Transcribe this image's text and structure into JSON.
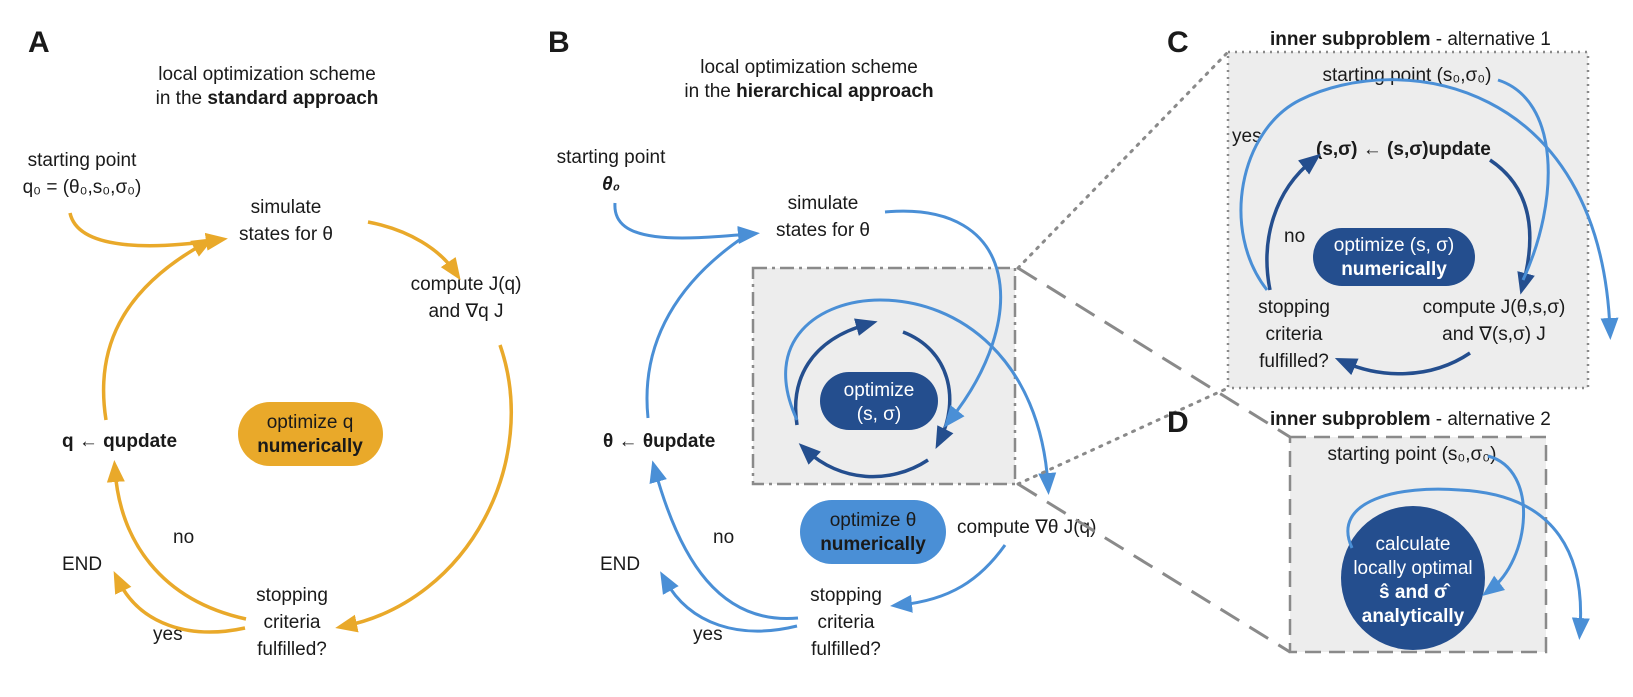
{
  "panels": {
    "A": {
      "letter": "A",
      "title_line1": "local optimization scheme",
      "title_line2_prefix": "in the ",
      "title_line2_bold": "standard approach",
      "start_line1": "starting point",
      "start_line2": "q₀ = (θ₀,s₀,σ₀)",
      "simulate_line1": "simulate",
      "simulate_line2": "states for θ",
      "compute_line1": "compute J(q)",
      "compute_line2": "and ∇q J",
      "pill_line1": "optimize q",
      "pill_line2": "numerically",
      "update": "q ← qupdate",
      "no": "no",
      "yes": "yes",
      "end": "END",
      "stop_line1": "stopping",
      "stop_line2": "criteria",
      "stop_line3": "fulfilled?"
    },
    "B": {
      "letter": "B",
      "title_line1": "local optimization scheme",
      "title_line2_prefix": "in the ",
      "title_line2_bold": "hierarchical approach",
      "start_line1": "starting point",
      "start_line2": "θ₀",
      "simulate_line1": "simulate",
      "simulate_line2": "states for θ",
      "inner_pill_line1": "optimize",
      "inner_pill_line2": "(s, σ)",
      "pill_line1": "optimize θ",
      "pill_line2": "numerically",
      "compute": "compute ∇θ J(q)",
      "update": "θ ← θupdate",
      "no": "no",
      "yes": "yes",
      "end": "END",
      "stop_line1": "stopping",
      "stop_line2": "criteria",
      "stop_line3": "fulfilled?"
    },
    "C": {
      "letter": "C",
      "heading_bold": "inner subproblem",
      "heading_rest": " - alternative 1",
      "start": "starting point (s₀,σ₀)",
      "yes": "yes",
      "update": "(s,σ)  ← (s,σ)update",
      "no": "no",
      "pill_line1": "optimize (s, σ)",
      "pill_line2": "numerically",
      "stop_line1": "stopping",
      "stop_line2": "criteria",
      "stop_line3": "fulfilled?",
      "compute_line1": "compute J(θ,s,σ)",
      "compute_line2": "and ∇(s,σ) J"
    },
    "D": {
      "letter": "D",
      "heading_bold": "inner subproblem",
      "heading_rest": " - alternative 2",
      "start": "starting point (s₀,σ₀)",
      "circle_line1": "calculate",
      "circle_line2": "locally optimal",
      "circle_line3": "ŝ and σ̂",
      "circle_line4": "analytically"
    }
  },
  "colors": {
    "orange": "#E9A92A",
    "blue_light": "#4A8FD6",
    "blue_dark": "#244E8E",
    "panel_bg": "#EDEDED",
    "border_gray": "#8A8A8A"
  }
}
